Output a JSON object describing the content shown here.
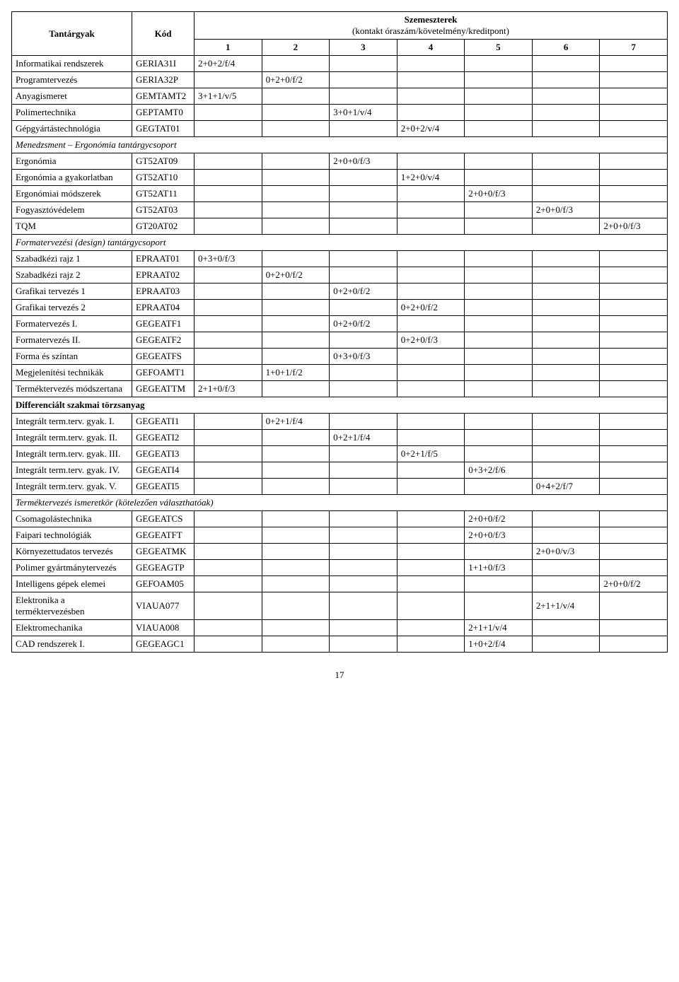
{
  "header": {
    "subject": "Tantárgyak",
    "code": "Kód",
    "semesters_title": "Szemeszterek",
    "semesters_subtitle": "(kontakt óraszám/követelmény/kreditpont)",
    "sem_labels": [
      "1",
      "2",
      "3",
      "4",
      "5",
      "6",
      "7"
    ]
  },
  "rows": [
    {
      "type": "data",
      "subject": "Informatikai rendszerek",
      "code": "GERIA31I",
      "sem": [
        "2+0+2/f/4",
        "",
        "",
        "",
        "",
        "",
        ""
      ]
    },
    {
      "type": "data",
      "subject": "Programtervezés",
      "code": "GERIA32P",
      "sem": [
        "",
        "0+2+0/f/2",
        "",
        "",
        "",
        "",
        ""
      ]
    },
    {
      "type": "data",
      "subject": "Anyagismeret",
      "code": "GEMTAMT2",
      "sem": [
        "3+1+1/v/5",
        "",
        "",
        "",
        "",
        "",
        ""
      ]
    },
    {
      "type": "data",
      "subject": "Polimertechnika",
      "code": "GEPTAMT0",
      "sem": [
        "",
        "",
        "3+0+1/v/4",
        "",
        "",
        "",
        ""
      ]
    },
    {
      "type": "data",
      "subject": "Gépgyártástechnológia",
      "code": "GEGTAT01",
      "sem": [
        "",
        "",
        "",
        "2+0+2/v/4",
        "",
        "",
        ""
      ]
    },
    {
      "type": "group",
      "label": "Menedzsment – Ergonómia tantárgycsoport"
    },
    {
      "type": "data",
      "subject": "Ergonómia",
      "code": "GT52AT09",
      "sem": [
        "",
        "",
        "2+0+0/f/3",
        "",
        "",
        "",
        ""
      ]
    },
    {
      "type": "data",
      "subject": "Ergonómia a gyakorlatban",
      "code": "GT52AT10",
      "sem": [
        "",
        "",
        "",
        "1+2+0/v/4",
        "",
        "",
        ""
      ]
    },
    {
      "type": "data",
      "subject": "Ergonómiai módszerek",
      "code": "GT52AT11",
      "sem": [
        "",
        "",
        "",
        "",
        "2+0+0/f/3",
        "",
        ""
      ]
    },
    {
      "type": "data",
      "subject": "Fogyasztóvédelem",
      "code": "GT52AT03",
      "sem": [
        "",
        "",
        "",
        "",
        "",
        "2+0+0/f/3",
        ""
      ]
    },
    {
      "type": "data",
      "subject": "TQM",
      "code": "GT20AT02",
      "sem": [
        "",
        "",
        "",
        "",
        "",
        "",
        "2+0+0/f/3"
      ]
    },
    {
      "type": "group",
      "label": "Formatervezési (design) tantárgycsoport"
    },
    {
      "type": "data",
      "subject": "Szabadkézi rajz 1",
      "code": "EPRAAT01",
      "sem": [
        "0+3+0/f/3",
        "",
        "",
        "",
        "",
        "",
        ""
      ]
    },
    {
      "type": "data",
      "subject": "Szabadkézi rajz 2",
      "code": "EPRAAT02",
      "sem": [
        "",
        "0+2+0/f/2",
        "",
        "",
        "",
        "",
        ""
      ]
    },
    {
      "type": "data",
      "subject": "Grafikai tervezés 1",
      "code": "EPRAAT03",
      "sem": [
        "",
        "",
        "0+2+0/f/2",
        "",
        "",
        "",
        ""
      ]
    },
    {
      "type": "data",
      "subject": "Grafikai tervezés 2",
      "code": "EPRAAT04",
      "sem": [
        "",
        "",
        "",
        "0+2+0/f/2",
        "",
        "",
        ""
      ]
    },
    {
      "type": "data",
      "subject": "Formatervezés I.",
      "code": "GEGEATF1",
      "sem": [
        "",
        "",
        "0+2+0/f/2",
        "",
        "",
        "",
        ""
      ]
    },
    {
      "type": "data",
      "subject": "Formatervezés II.",
      "code": "GEGEATF2",
      "sem": [
        "",
        "",
        "",
        "0+2+0/f/3",
        "",
        "",
        ""
      ]
    },
    {
      "type": "data",
      "subject": "Forma és színtan",
      "code": "GEGEATFS",
      "sem": [
        "",
        "",
        "0+3+0/f/3",
        "",
        "",
        "",
        ""
      ]
    },
    {
      "type": "data",
      "subject": "Megjelenítési technikák",
      "code": "GEFOAMT1",
      "sem": [
        "",
        "1+0+1/f/2",
        "",
        "",
        "",
        "",
        ""
      ]
    },
    {
      "type": "data",
      "subject": "Terméktervezés módszertana",
      "code": "GEGEATTM",
      "sem": [
        "2+1+0/f/3",
        "",
        "",
        "",
        "",
        "",
        ""
      ]
    },
    {
      "type": "group-bold",
      "label": "Differenciált szakmai törzsanyag"
    },
    {
      "type": "data",
      "subject": "Integrált term.terv. gyak. I.",
      "code": "GEGEATI1",
      "sem": [
        "",
        "0+2+1/f/4",
        "",
        "",
        "",
        "",
        ""
      ]
    },
    {
      "type": "data",
      "subject": "Integrált term.terv. gyak. II.",
      "code": "GEGEATI2",
      "sem": [
        "",
        "",
        "0+2+1/f/4",
        "",
        "",
        "",
        ""
      ]
    },
    {
      "type": "data",
      "subject": "Integrált term.terv. gyak. III.",
      "code": "GEGEATI3",
      "sem": [
        "",
        "",
        "",
        "0+2+1/f/5",
        "",
        "",
        ""
      ]
    },
    {
      "type": "data",
      "subject": "Integrált term.terv. gyak. IV.",
      "code": "GEGEATI4",
      "sem": [
        "",
        "",
        "",
        "",
        "0+3+2/f/6",
        "",
        ""
      ]
    },
    {
      "type": "data",
      "subject": "Integrált term.terv. gyak. V.",
      "code": "GEGEATI5",
      "sem": [
        "",
        "",
        "",
        "",
        "",
        "0+4+2/f/7",
        ""
      ]
    },
    {
      "type": "group",
      "label": "Terméktervezés ismeretkör (kötelezően választhatóak)"
    },
    {
      "type": "data",
      "subject": "Csomagolástechnika",
      "code": "GEGEATCS",
      "sem": [
        "",
        "",
        "",
        "",
        "2+0+0/f/2",
        "",
        ""
      ]
    },
    {
      "type": "data",
      "subject": "Faipari technológiák",
      "code": "GEGEATFT",
      "sem": [
        "",
        "",
        "",
        "",
        "2+0+0/f/3",
        "",
        ""
      ]
    },
    {
      "type": "data",
      "subject": "Környezettudatos tervezés",
      "code": "GEGEATMK",
      "sem": [
        "",
        "",
        "",
        "",
        "",
        "2+0+0/v/3",
        ""
      ]
    },
    {
      "type": "data",
      "subject": "Polimer gyártmánytervezés",
      "code": "GEGEAGTP",
      "sem": [
        "",
        "",
        "",
        "",
        "1+1+0/f/3",
        "",
        ""
      ]
    },
    {
      "type": "data",
      "subject": "Intelligens gépek elemei",
      "code": "GEFOAM05",
      "sem": [
        "",
        "",
        "",
        "",
        "",
        "",
        "2+0+0/f/2"
      ]
    },
    {
      "type": "data",
      "subject": "Elektronika a terméktervezésben",
      "code": "VIAUA077",
      "sem": [
        "",
        "",
        "",
        "",
        "",
        "2+1+1/v/4",
        ""
      ]
    },
    {
      "type": "data",
      "subject": "Elektromechanika",
      "code": "VIAUA008",
      "sem": [
        "",
        "",
        "",
        "",
        "2+1+1/v/4",
        "",
        ""
      ]
    },
    {
      "type": "data",
      "subject": "CAD rendszerek I.",
      "code": "GEGEAGC1",
      "sem": [
        "",
        "",
        "",
        "",
        "1+0+2/f/4",
        "",
        ""
      ]
    }
  ],
  "page_number": "17"
}
